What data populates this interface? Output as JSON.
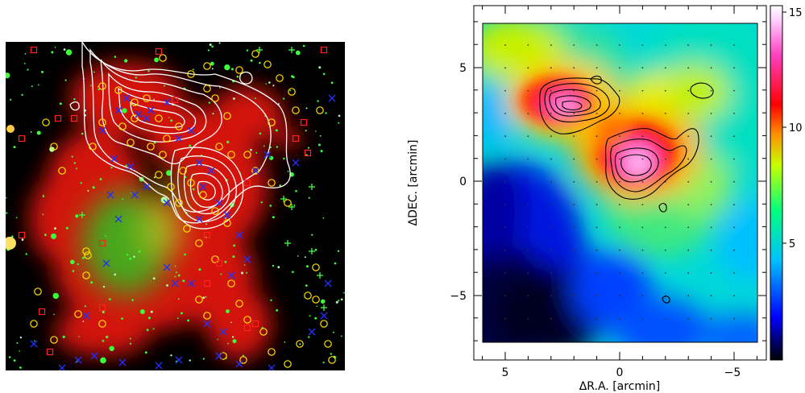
{
  "left_image": {
    "description": "",
    "legend_symbols": [
      "circle",
      "square",
      "cross",
      "plus"
    ]
  },
  "right_map": {
    "xlabel": "ΔR.A. [arcmin]",
    "ylabel": "ΔDEC. [arcmin]",
    "x_ticks": [
      "5",
      "0",
      "−5"
    ],
    "y_ticks": [
      "5",
      "0",
      "−5"
    ],
    "colorbar_ticks": [
      "15",
      "10",
      "5"
    ]
  },
  "chart_data": {
    "type": "heatmap",
    "x_range": [
      6,
      -6
    ],
    "y_range": [
      -7.5,
      7.5
    ],
    "x_ticks": [
      5,
      0,
      -5
    ],
    "y_ticks": [
      5,
      0,
      -5
    ],
    "colorbar_range": [
      0,
      15.3
    ],
    "colorbar_ticks": [
      5,
      10,
      15
    ],
    "colormap": [
      "#000000",
      "#0000ff",
      "#00c0ff",
      "#00ff80",
      "#c8ff00",
      "#ff8c00",
      "#ff0000",
      "#ff40c0",
      "#ffd0ff",
      "#ffffff"
    ]
  }
}
